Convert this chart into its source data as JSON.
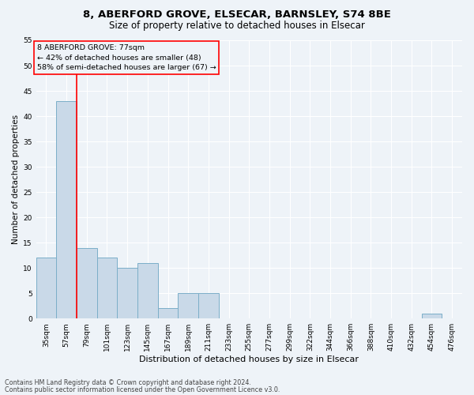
{
  "title1": "8, ABERFORD GROVE, ELSECAR, BARNSLEY, S74 8BE",
  "title2": "Size of property relative to detached houses in Elsecar",
  "xlabel": "Distribution of detached houses by size in Elsecar",
  "ylabel": "Number of detached properties",
  "categories": [
    "35sqm",
    "57sqm",
    "79sqm",
    "101sqm",
    "123sqm",
    "145sqm",
    "167sqm",
    "189sqm",
    "211sqm",
    "233sqm",
    "255sqm",
    "277sqm",
    "299sqm",
    "322sqm",
    "344sqm",
    "366sqm",
    "388sqm",
    "410sqm",
    "432sqm",
    "454sqm",
    "476sqm"
  ],
  "values": [
    12,
    43,
    14,
    12,
    10,
    11,
    2,
    5,
    5,
    0,
    0,
    0,
    0,
    0,
    0,
    0,
    0,
    0,
    0,
    1,
    0
  ],
  "bar_color": "#c9d9e8",
  "bar_edge_color": "#7baec8",
  "red_line_x": 1.5,
  "annotation_line1": "8 ABERFORD GROVE: 77sqm",
  "annotation_line2": "← 42% of detached houses are smaller (48)",
  "annotation_line3": "58% of semi-detached houses are larger (67) →",
  "ylim": [
    0,
    55
  ],
  "yticks": [
    0,
    5,
    10,
    15,
    20,
    25,
    30,
    35,
    40,
    45,
    50,
    55
  ],
  "footer1": "Contains HM Land Registry data © Crown copyright and database right 2024.",
  "footer2": "Contains public sector information licensed under the Open Government Licence v3.0.",
  "bg_color": "#eef3f8",
  "grid_color": "#ffffff",
  "title1_fontsize": 9.5,
  "title2_fontsize": 8.5,
  "ylabel_fontsize": 7.5,
  "xlabel_fontsize": 8,
  "tick_fontsize": 6.5,
  "ann_fontsize": 6.8,
  "footer_fontsize": 5.8
}
